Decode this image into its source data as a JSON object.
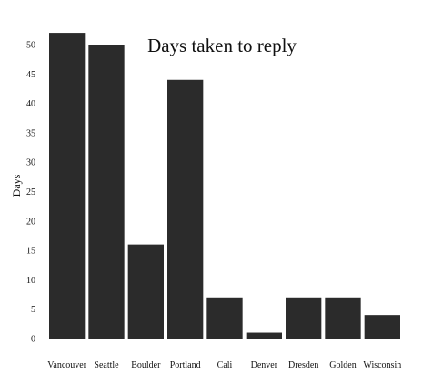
{
  "chart_data": {
    "type": "bar",
    "title": "Days taken to reply",
    "xlabel": "",
    "ylabel": "Days",
    "categories": [
      "Vancouver",
      "Seattle",
      "Boulder",
      "Portland",
      "Cali",
      "Denver",
      "Dresden",
      "Golden",
      "Wisconsin"
    ],
    "values": [
      52,
      50,
      16,
      44,
      7,
      1,
      7,
      7,
      4
    ],
    "ylim": [
      0,
      52
    ],
    "yticks": [
      0,
      5,
      10,
      15,
      20,
      25,
      30,
      35,
      40,
      45,
      50
    ],
    "grid": false,
    "legend": "none",
    "bar_color": "#2b2b2b",
    "background": "#ffffff"
  }
}
